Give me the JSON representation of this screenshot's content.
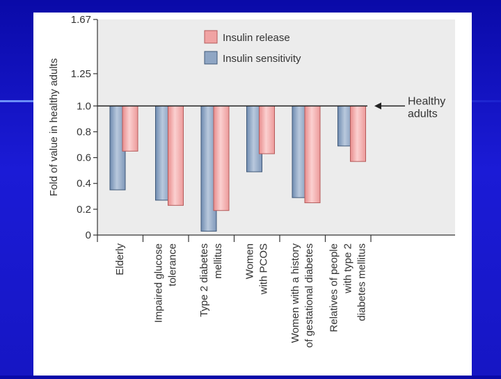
{
  "chart_data": {
    "type": "bar",
    "ylabel": "Fold of value in healthy adults",
    "ylim": [
      0,
      1.67
    ],
    "yticks": [
      {
        "value": 0,
        "label": "0"
      },
      {
        "value": 0.2,
        "label": "0.2"
      },
      {
        "value": 0.4,
        "label": "0.4"
      },
      {
        "value": 0.6,
        "label": "0.6"
      },
      {
        "value": 0.8,
        "label": "0.8"
      },
      {
        "value": 1.0,
        "label": "1.0"
      },
      {
        "value": 1.25,
        "label": "1.25"
      },
      {
        "value": 1.67,
        "label": "1.67"
      }
    ],
    "baseline": 1.0,
    "categories": [
      [
        "Elderly"
      ],
      [
        "Impaired glucose",
        "tolerance"
      ],
      [
        "Type 2 diabetes",
        "mellitus"
      ],
      [
        "Women",
        "with PCOS"
      ],
      [
        "Women with a history",
        "of gestational diabetes"
      ],
      [
        "Relatives of people",
        "with type 2",
        "diabetes mellitus"
      ]
    ],
    "series": [
      {
        "name": "Insulin sensitivity",
        "color": "#8fa6c4",
        "values": [
          0.35,
          0.27,
          0.03,
          0.49,
          0.29,
          0.69
        ]
      },
      {
        "name": "Insulin release",
        "color": "#f0a3a3",
        "values": [
          0.65,
          0.23,
          0.19,
          0.63,
          0.25,
          0.57
        ]
      }
    ],
    "legend": [
      {
        "label": "Insulin release",
        "color": "#f0a3a3"
      },
      {
        "label": "Insulin sensitivity",
        "color": "#8fa6c4"
      }
    ],
    "annotation": [
      "Healthy",
      "adults"
    ]
  }
}
